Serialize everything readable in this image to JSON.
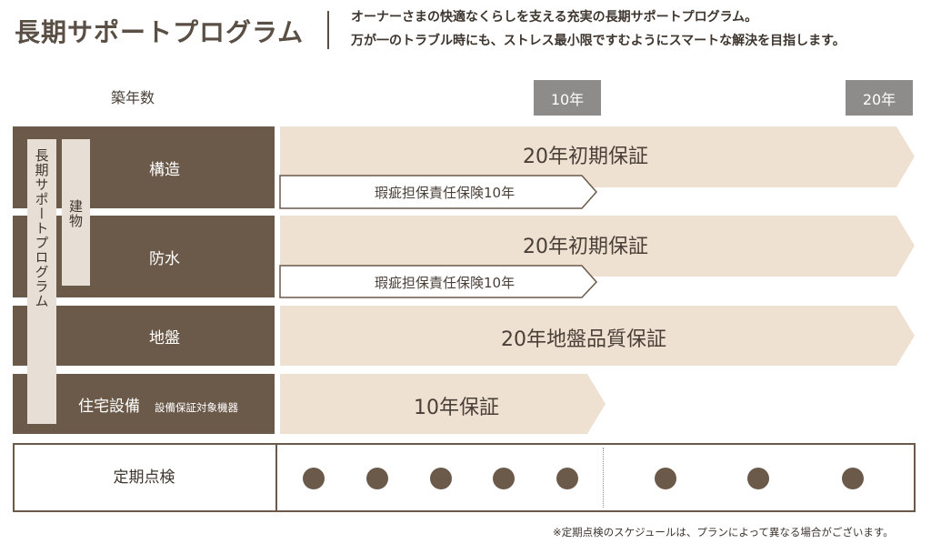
{
  "header": {
    "title": "長期サポートプログラム",
    "subtitle_line1": "オーナーさまの快適なくらしを支える充実の長期サポートプログラム。",
    "subtitle_line2": "万が一のトラブル時にも、ストレス最小限ですむようにスマートな解決を目指します。"
  },
  "timeline": {
    "label": "築年数",
    "marker_10": "10年",
    "marker_20": "20年"
  },
  "groups": {
    "program": "長期サポートプログラム",
    "building": "建物"
  },
  "rows": {
    "structure": {
      "label": "構造",
      "main": "20年初期保証",
      "sub": "瑕疵担保責任保険10年"
    },
    "waterproof": {
      "label": "防水",
      "main": "20年初期保証",
      "sub": "瑕疵担保責任保険10年"
    },
    "ground": {
      "label": "地盤",
      "main": "20年地盤品質保証"
    },
    "equipment": {
      "label": "住宅設備",
      "sublabel": "設備保証対象機器",
      "main": "10年保証"
    }
  },
  "inspection": {
    "label": "定期点検",
    "dot_count": 8
  },
  "note": "※定期点検のスケジュールは、プランによって異なる場合がございます。",
  "colors": {
    "dark_brown": "#6b5949",
    "beige": "#eee1d2",
    "light_beige": "#e7ded6",
    "gray": "#8e8c8b"
  }
}
